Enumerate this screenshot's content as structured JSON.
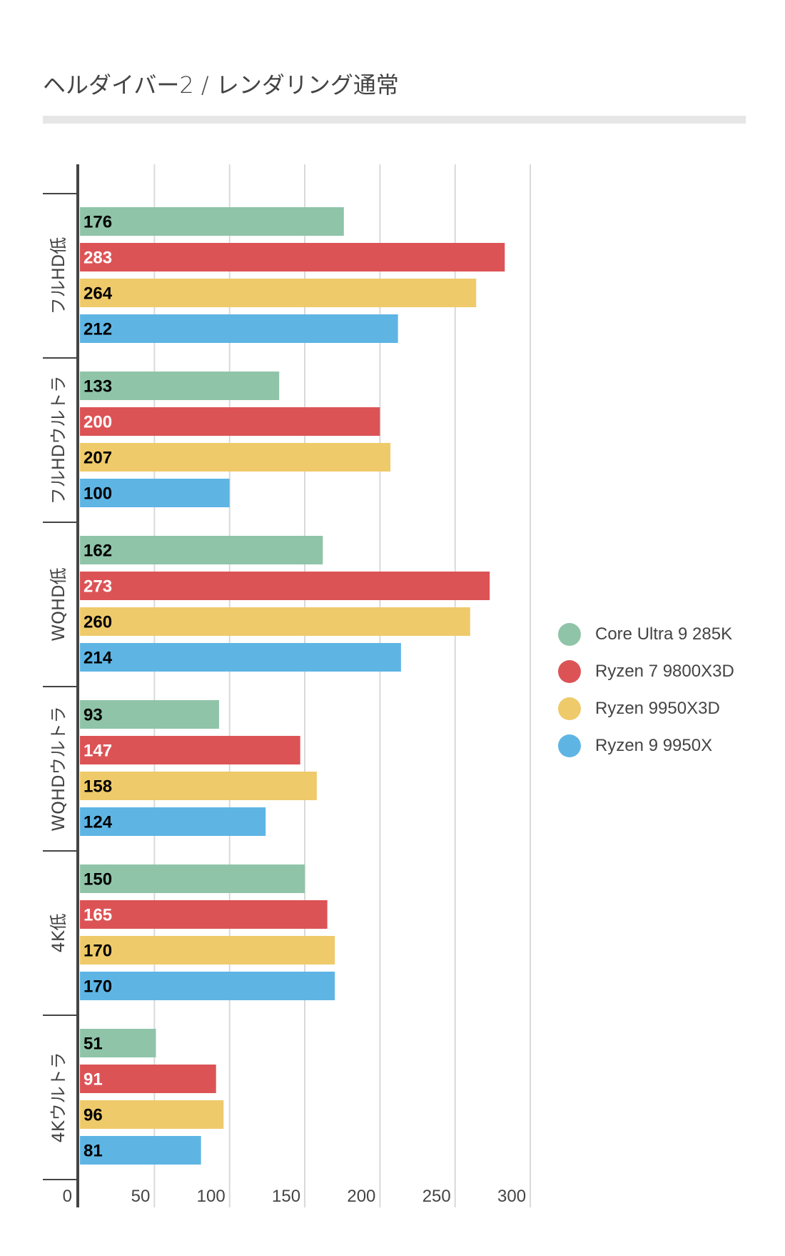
{
  "chart_data": {
    "type": "bar",
    "orientation": "horizontal",
    "title": "ヘルダイバー2 / レンダリング通常",
    "xlabel": "",
    "ylabel": "",
    "xlim": [
      0,
      300
    ],
    "xticks": [
      0,
      50,
      100,
      150,
      200,
      250,
      300
    ],
    "grid": true,
    "legend_position": "right",
    "categories": [
      "フルHD低",
      "フルHDウルトラ",
      "WQHD低",
      "WQHDウルトラ",
      "4K低",
      "4Kウルトラ"
    ],
    "series": [
      {
        "name": "Core Ultra 9 285K",
        "color": "#8fc4a8",
        "label_color": "#000000",
        "values": [
          176,
          133,
          162,
          93,
          150,
          51
        ]
      },
      {
        "name": "Ryzen 7 9800X3D",
        "color": "#dc5356",
        "label_color": "#ffffff",
        "values": [
          283,
          200,
          273,
          147,
          165,
          91
        ]
      },
      {
        "name": "Ryzen 9950X3D",
        "color": "#efca6a",
        "label_color": "#000000",
        "values": [
          264,
          207,
          260,
          158,
          170,
          96
        ]
      },
      {
        "name": "Ryzen 9 9950X",
        "color": "#5eb5e4",
        "label_color": "#000000",
        "values": [
          212,
          100,
          214,
          124,
          170,
          81
        ]
      }
    ]
  }
}
